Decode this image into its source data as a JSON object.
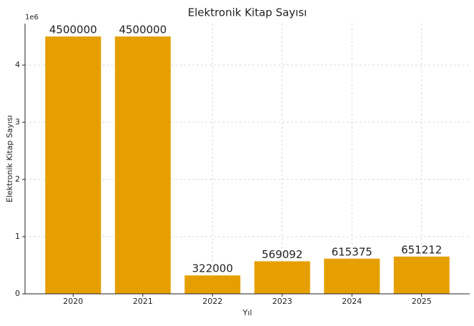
{
  "chart_data": {
    "type": "bar",
    "title": "Elektronik Kitap Sayısı",
    "x_label": "Yıl",
    "y_label": "Elektronik Kitap Sayısı",
    "y_offset_label": "1e6",
    "categories": [
      "2020",
      "2021",
      "2022",
      "2023",
      "2024",
      "2025"
    ],
    "values": [
      4500000,
      4500000,
      322000,
      569092,
      615375,
      651212
    ],
    "color": "#e69f00",
    "ylim": [
      0,
      4725000
    ],
    "yticks": [
      0,
      {
        "value": 1000000,
        "label": "1"
      },
      {
        "value": 2000000,
        "label": "2"
      },
      {
        "value": 3000000,
        "label": "3"
      },
      {
        "value": 4000000,
        "label": "4"
      }
    ],
    "grid": true
  }
}
